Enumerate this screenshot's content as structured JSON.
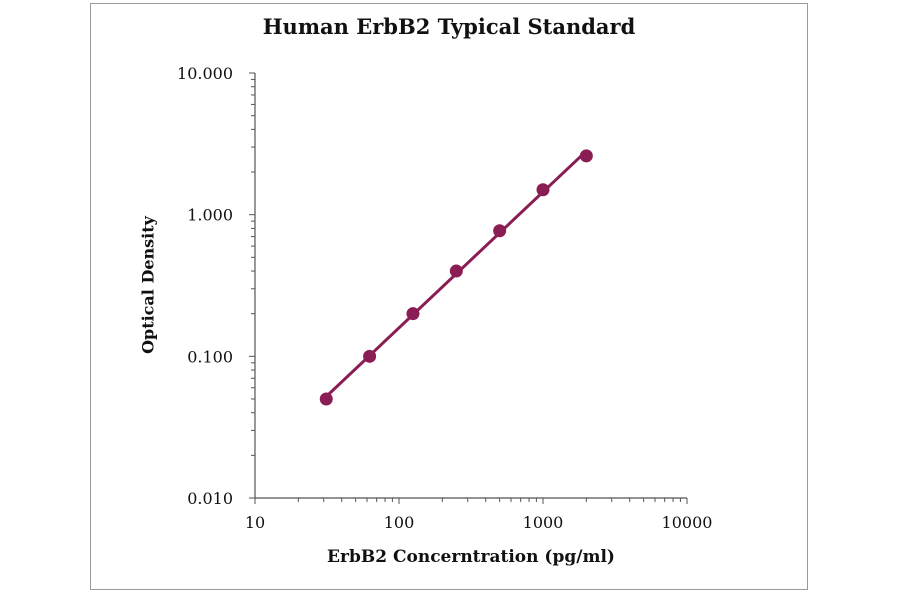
{
  "chart_data": {
    "type": "scatter",
    "title": "Human ErbB2 Typical Standard",
    "xlabel": "ErbB2 Concerntration (pg/ml)",
    "ylabel": "Optical Density",
    "x_scale": "log",
    "y_scale": "log",
    "xlim": [
      10,
      10000
    ],
    "ylim": [
      0.01,
      10
    ],
    "x_ticks": [
      "10",
      "100",
      "1000",
      "10000"
    ],
    "y_ticks": [
      "0.010",
      "0.100",
      "1.000",
      "10.000"
    ],
    "grid": false,
    "legend": "none",
    "series": [
      {
        "x": [
          31.25,
          62.5,
          125,
          250,
          500,
          1000,
          2000
        ],
        "y": [
          0.05,
          0.1,
          0.2,
          0.4,
          0.77,
          1.5,
          2.6
        ],
        "color": "#8b1d55",
        "fit_line": true
      }
    ]
  }
}
